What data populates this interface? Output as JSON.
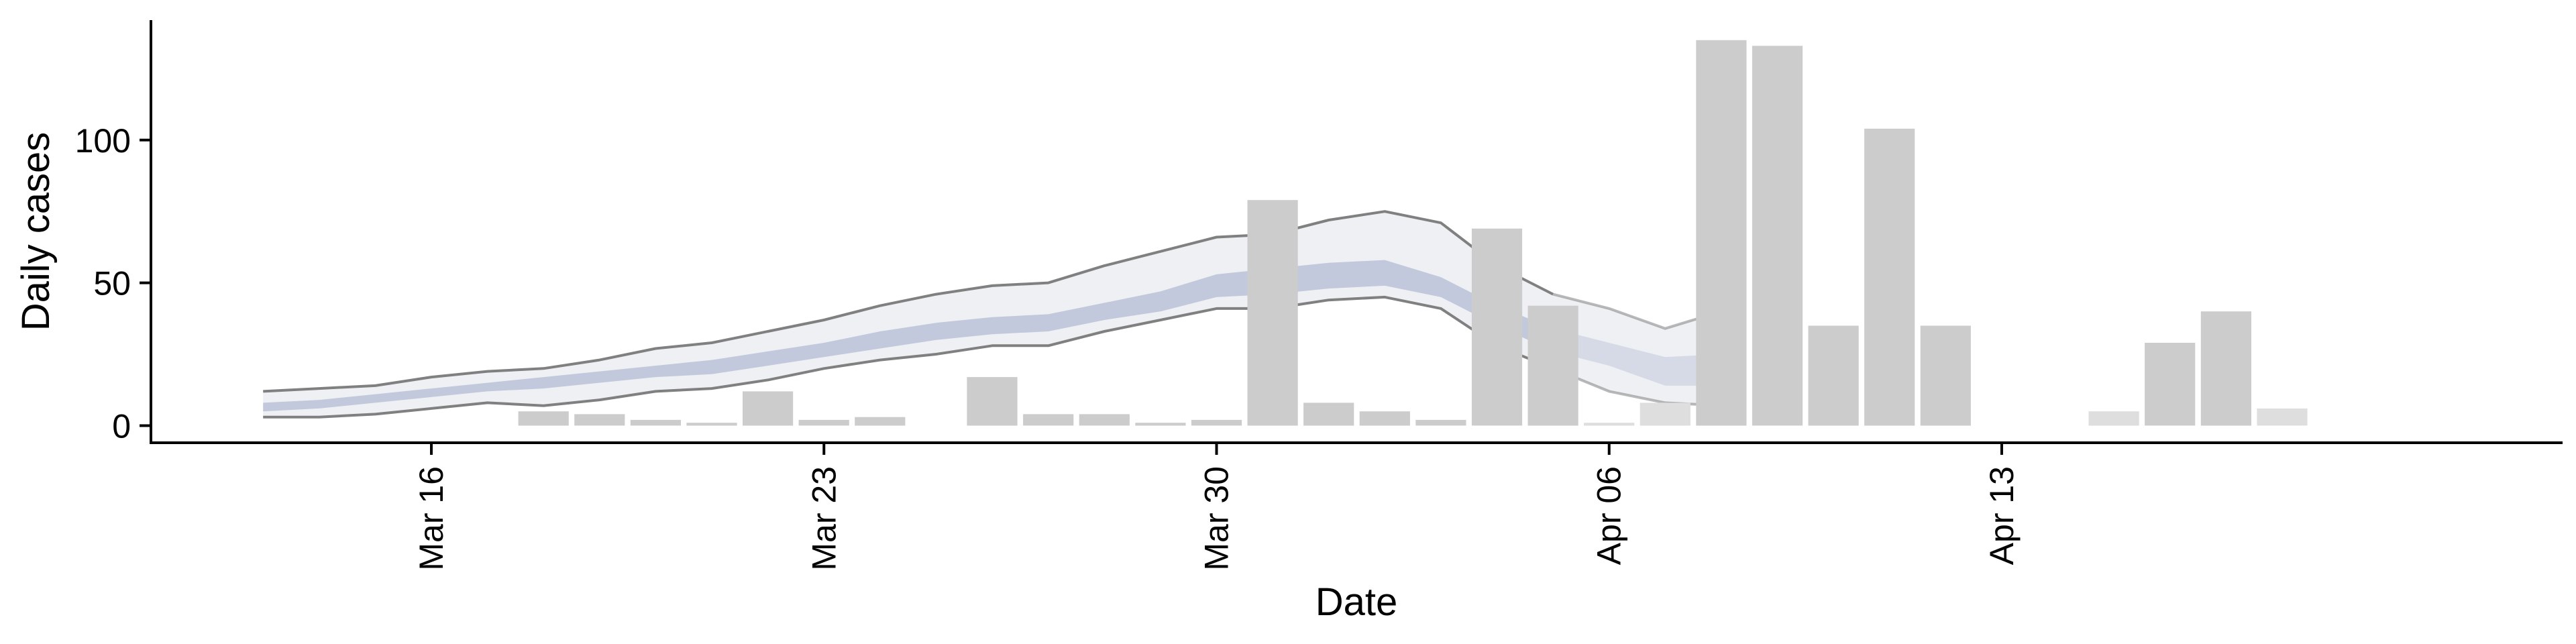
{
  "chart_data": {
    "type": "bar",
    "xlabel": "Date",
    "ylabel": "Daily cases",
    "x_ticks": [
      {
        "date": "2020-03-16",
        "label": "Mar 16"
      },
      {
        "date": "2020-03-23",
        "label": "Mar 23"
      },
      {
        "date": "2020-03-30",
        "label": "Mar 30"
      },
      {
        "date": "2020-04-06",
        "label": "Apr 06"
      },
      {
        "date": "2020-04-13",
        "label": "Apr 13"
      }
    ],
    "y_ticks": [
      0,
      50,
      100
    ],
    "xlim": [
      "2020-03-11",
      "2020-04-23"
    ],
    "ylim": [
      -6,
      142
    ],
    "grid": false,
    "colors": {
      "bars_observed": "#cccccc",
      "bars_recent": "#dedede",
      "ribbon_outer": "#eef0f4",
      "ribbon_inner": "#c3c9dc",
      "bound_lines": "#808080"
    },
    "bars": [
      {
        "date": "2020-03-18",
        "value": 5
      },
      {
        "date": "2020-03-19",
        "value": 4
      },
      {
        "date": "2020-03-20",
        "value": 2
      },
      {
        "date": "2020-03-21",
        "value": 1
      },
      {
        "date": "2020-03-22",
        "value": 12
      },
      {
        "date": "2020-03-23",
        "value": 2
      },
      {
        "date": "2020-03-24",
        "value": 3
      },
      {
        "date": "2020-03-26",
        "value": 17
      },
      {
        "date": "2020-03-27",
        "value": 4
      },
      {
        "date": "2020-03-28",
        "value": 4
      },
      {
        "date": "2020-03-29",
        "value": 1
      },
      {
        "date": "2020-03-30",
        "value": 2
      },
      {
        "date": "2020-03-31",
        "value": 79
      },
      {
        "date": "2020-04-01",
        "value": 8
      },
      {
        "date": "2020-04-02",
        "value": 5
      },
      {
        "date": "2020-04-03",
        "value": 2
      },
      {
        "date": "2020-04-04",
        "value": 69
      },
      {
        "date": "2020-04-05",
        "value": 42
      },
      {
        "date": "2020-04-06",
        "value": 1
      },
      {
        "date": "2020-04-07",
        "value": 8
      },
      {
        "date": "2020-04-08",
        "value": 135
      },
      {
        "date": "2020-04-09",
        "value": 133
      },
      {
        "date": "2020-04-10",
        "value": 35
      },
      {
        "date": "2020-04-11",
        "value": 104
      },
      {
        "date": "2020-04-12",
        "value": 35
      },
      {
        "date": "2020-04-15",
        "value": 5
      },
      {
        "date": "2020-04-16",
        "value": 29
      },
      {
        "date": "2020-04-17",
        "value": 40
      },
      {
        "date": "2020-04-18",
        "value": 6
      }
    ],
    "estimate": {
      "dates": [
        "2020-03-13",
        "2020-03-14",
        "2020-03-15",
        "2020-03-16",
        "2020-03-17",
        "2020-03-18",
        "2020-03-19",
        "2020-03-20",
        "2020-03-21",
        "2020-03-22",
        "2020-03-23",
        "2020-03-24",
        "2020-03-25",
        "2020-03-26",
        "2020-03-27",
        "2020-03-28",
        "2020-03-29",
        "2020-03-30",
        "2020-03-31",
        "2020-04-01",
        "2020-04-02",
        "2020-04-03",
        "2020-04-04",
        "2020-04-05",
        "2020-04-06",
        "2020-04-07",
        "2020-04-08"
      ],
      "outer_lower": [
        3,
        3,
        4,
        6,
        8,
        7,
        9,
        12,
        13,
        16,
        20,
        23,
        25,
        28,
        28,
        33,
        37,
        41,
        41,
        44,
        45,
        41,
        28,
        20,
        12,
        8,
        7
      ],
      "inner_lower": [
        5,
        6,
        8,
        10,
        12,
        13,
        15,
        17,
        18,
        21,
        24,
        27,
        30,
        32,
        33,
        37,
        40,
        45,
        46,
        48,
        49,
        45,
        35,
        26,
        21,
        14,
        14
      ],
      "inner_upper": [
        8,
        9,
        11,
        13,
        15,
        17,
        19,
        21,
        23,
        26,
        29,
        33,
        36,
        38,
        39,
        43,
        47,
        53,
        55,
        57,
        58,
        52,
        42,
        34,
        29,
        24,
        25
      ],
      "outer_upper": [
        12,
        13,
        14,
        17,
        19,
        20,
        23,
        27,
        29,
        33,
        37,
        42,
        46,
        49,
        50,
        56,
        61,
        66,
        67,
        72,
        75,
        71,
        56,
        46,
        41,
        34,
        40
      ],
      "recent_from": "2020-04-05"
    }
  }
}
